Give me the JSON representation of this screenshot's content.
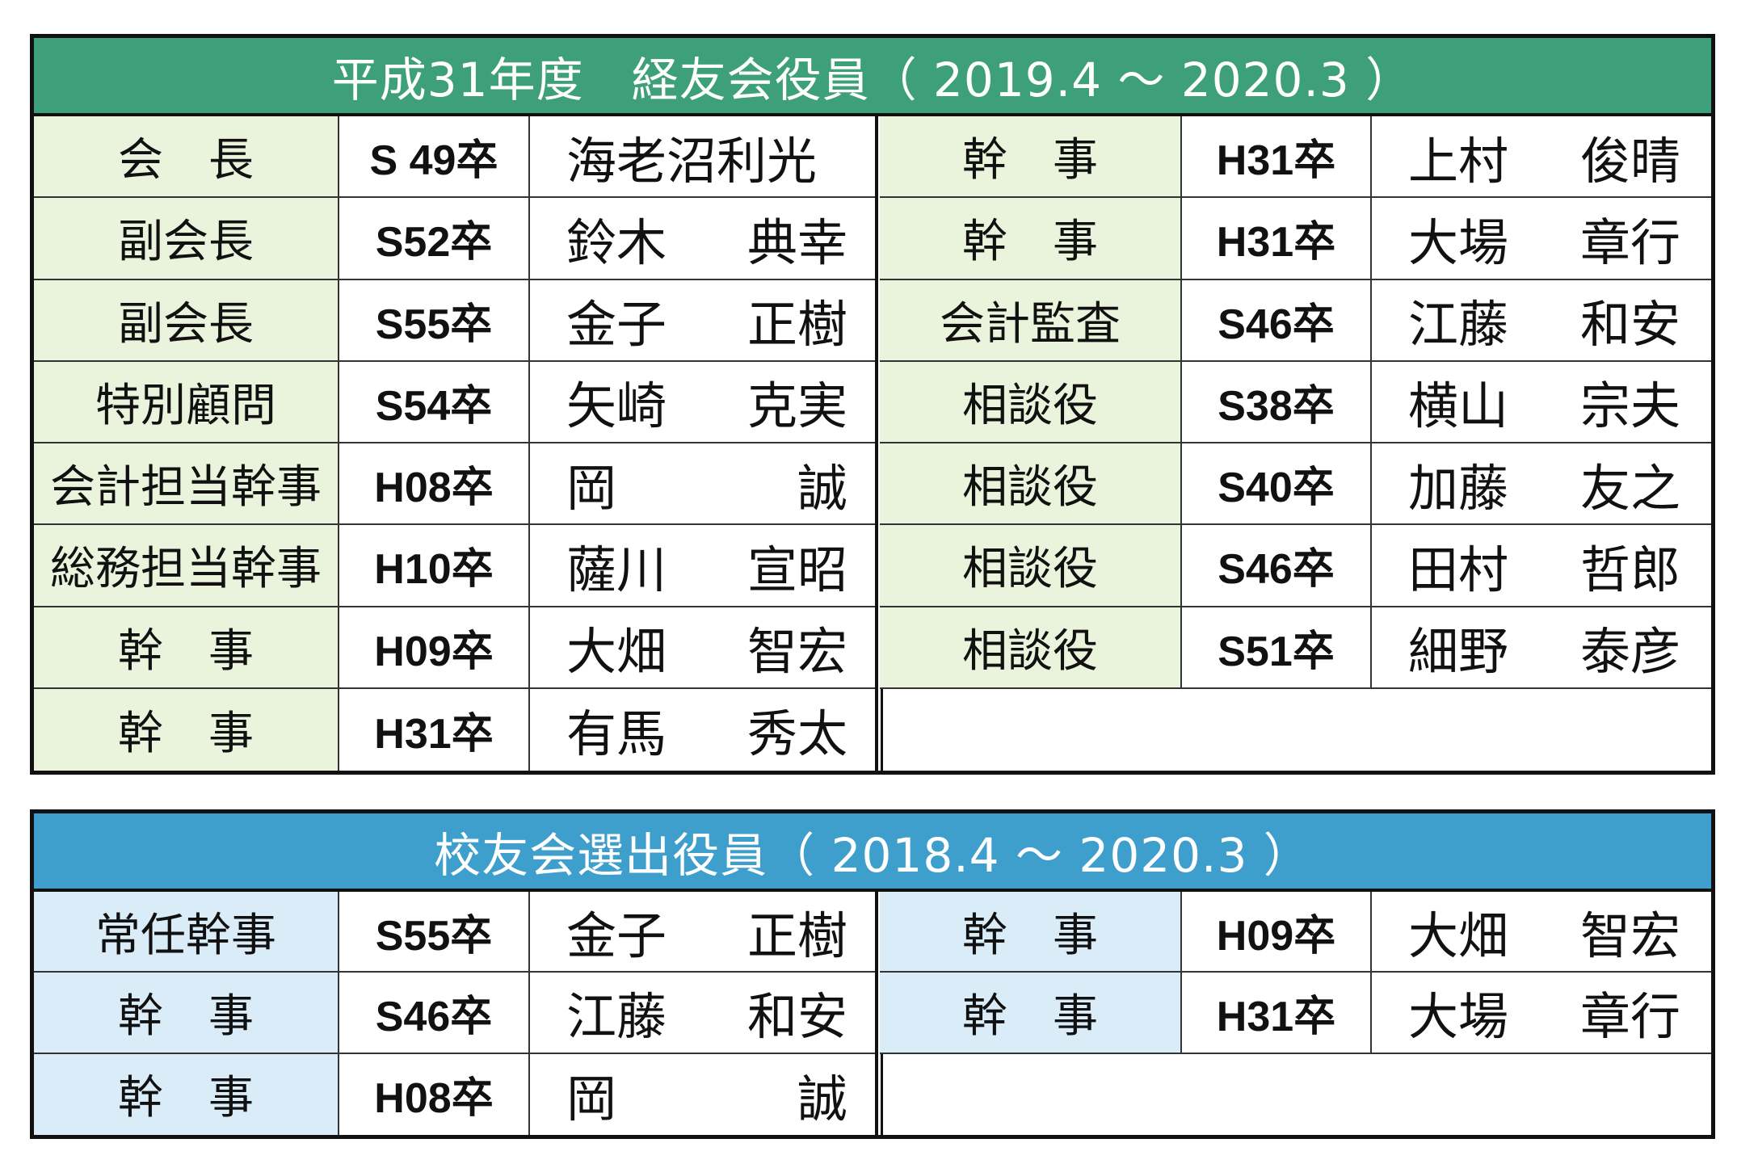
{
  "panel1": {
    "title": "平成31年度　経友会役員（ 2019.4 ～ 2020.3 ）",
    "left_rows": [
      {
        "role": "会　長",
        "grad": "S 49卒",
        "family": "海老沼利光",
        "given": ""
      },
      {
        "role": "副会長",
        "grad": "S52卒",
        "family": "鈴木",
        "given": "典幸"
      },
      {
        "role": "副会長",
        "grad": "S55卒",
        "family": "金子",
        "given": "正樹"
      },
      {
        "role": "特別顧問",
        "grad": "S54卒",
        "family": "矢崎",
        "given": "克実"
      },
      {
        "role": "会計担当幹事",
        "grad": "H08卒",
        "family": "岡",
        "given": "誠"
      },
      {
        "role": "総務担当幹事",
        "grad": "H10卒",
        "family": "薩川",
        "given": "宣昭"
      },
      {
        "role": "幹　事",
        "grad": "H09卒",
        "family": "大畑",
        "given": "智宏"
      },
      {
        "role": "幹　事",
        "grad": "H31卒",
        "family": "有馬",
        "given": "秀太"
      }
    ],
    "right_rows": [
      {
        "role": "幹　事",
        "grad": "H31卒",
        "family": "上村",
        "given": "俊晴"
      },
      {
        "role": "幹　事",
        "grad": "H31卒",
        "family": "大場",
        "given": "章行"
      },
      {
        "role": "会計監査",
        "grad": "S46卒",
        "family": "江藤",
        "given": "和安"
      },
      {
        "role": "相談役",
        "grad": "S38卒",
        "family": "横山",
        "given": "宗夫"
      },
      {
        "role": "相談役",
        "grad": "S40卒",
        "family": "加藤",
        "given": "友之"
      },
      {
        "role": "相談役",
        "grad": "S46卒",
        "family": "田村",
        "given": "哲郎"
      },
      {
        "role": "相談役",
        "grad": "S51卒",
        "family": "細野",
        "given": "泰彦"
      }
    ]
  },
  "panel2": {
    "title": "校友会選出役員（ 2018.4 ～ 2020.3 ）",
    "left_rows": [
      {
        "role": "常任幹事",
        "grad": "S55卒",
        "family": "金子",
        "given": "正樹"
      },
      {
        "role": "幹　事",
        "grad": "S46卒",
        "family": "江藤",
        "given": "和安"
      },
      {
        "role": "幹　事",
        "grad": "H08卒",
        "family": "岡",
        "given": "誠"
      }
    ],
    "right_rows": [
      {
        "role": "幹　事",
        "grad": "H09卒",
        "family": "大畑",
        "given": "智宏"
      },
      {
        "role": "幹　事",
        "grad": "H31卒",
        "family": "大場",
        "given": "章行"
      }
    ]
  }
}
